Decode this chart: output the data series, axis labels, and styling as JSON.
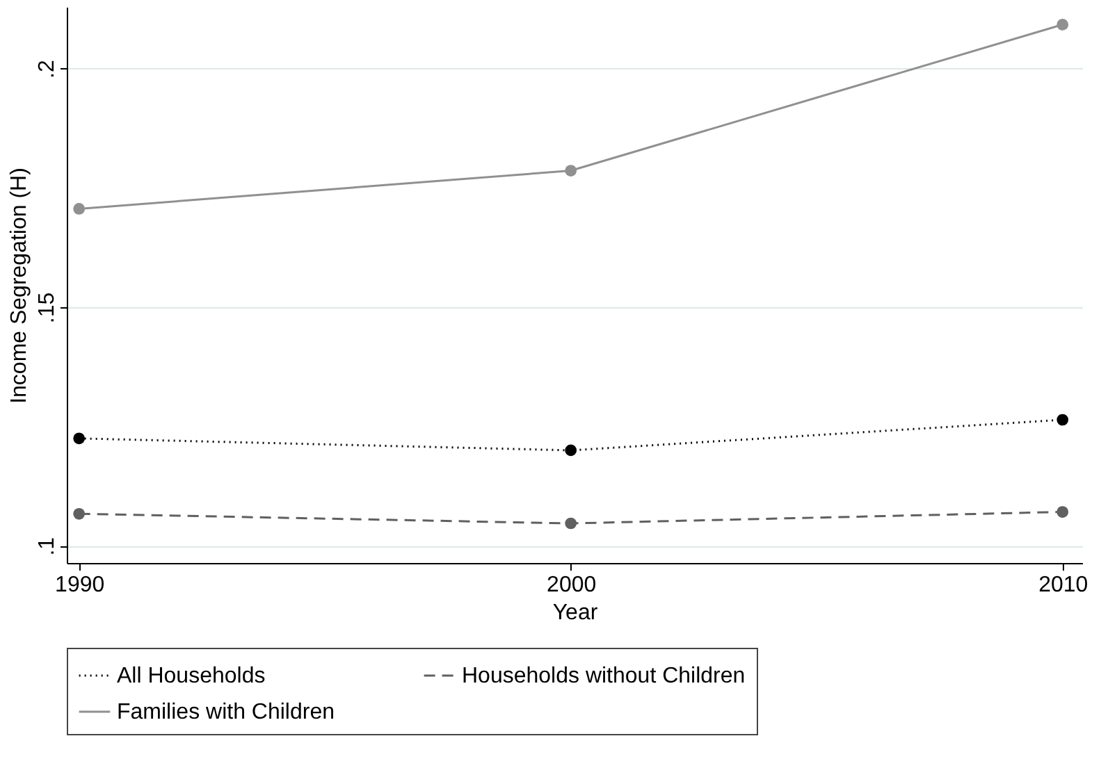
{
  "chart_data": {
    "type": "line",
    "xlabel": "Year",
    "ylabel": "Income Segregation (H)",
    "x": [
      1990,
      2000,
      2010
    ],
    "series": [
      {
        "name": "All Households",
        "color": "#000000",
        "line_style": "dotted",
        "values": [
          0.1225,
          0.12,
          0.1264
        ]
      },
      {
        "name": "Households without Children",
        "color": "#606060",
        "line_style": "dashed",
        "values": [
          0.1067,
          0.1047,
          0.1071
        ]
      },
      {
        "name": "Families with Children",
        "color": "#909090",
        "line_style": "solid",
        "values": [
          0.1706,
          0.1786,
          0.2092
        ]
      }
    ],
    "xlim": [
      1989.75,
      2010.4
    ],
    "xticks": [
      1990,
      2000,
      2010
    ],
    "ylim": [
      0.0964,
      0.2129
    ],
    "yticks": [
      {
        "value": 0.1,
        "label": ".1"
      },
      {
        "value": 0.15,
        "label": ".15"
      },
      {
        "value": 0.2,
        "label": ".2"
      }
    ],
    "grid": "y",
    "legend": "bottom",
    "marker": "circle"
  }
}
